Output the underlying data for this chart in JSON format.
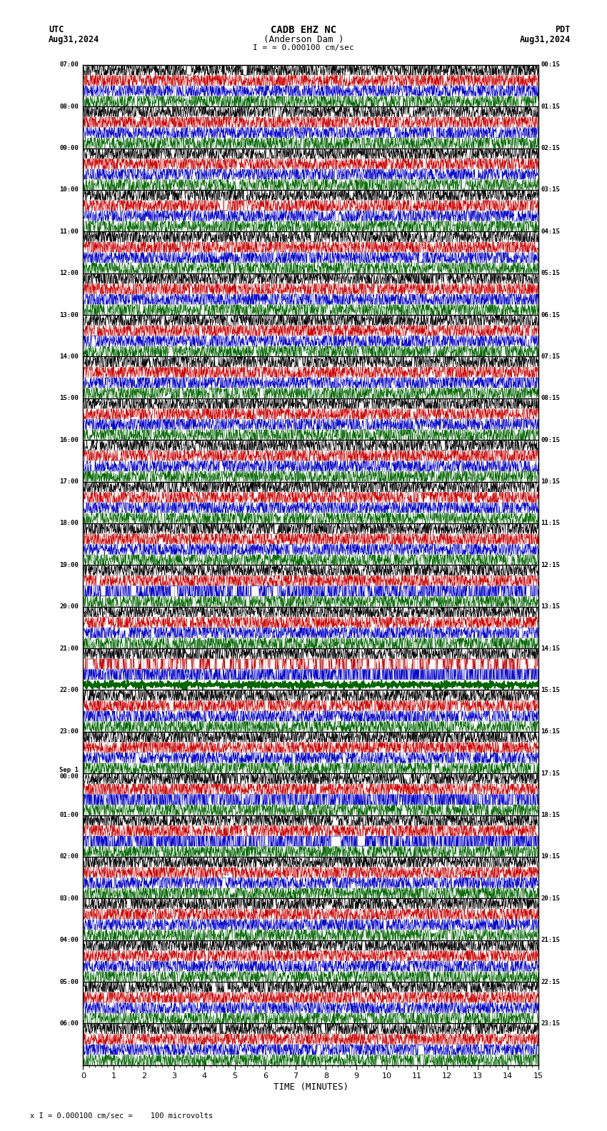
{
  "title_line1": "CADB EHZ NC",
  "title_line2": "(Anderson Dam )",
  "scale_label": "= 0.000100 cm/sec",
  "utc_label": "UTC",
  "utc_date": "Aug31,2024",
  "pdt_label": "PDT",
  "pdt_date": "Aug31,2024",
  "footer_label": "= 0.000100 cm/sec =    100 microvolts",
  "xlabel": "TIME (MINUTES)",
  "left_times": [
    "07:00",
    "08:00",
    "09:00",
    "10:00",
    "11:00",
    "12:00",
    "13:00",
    "14:00",
    "15:00",
    "16:00",
    "17:00",
    "18:00",
    "19:00",
    "20:00",
    "21:00",
    "22:00",
    "23:00",
    "Sep 1\n00:00",
    "01:00",
    "02:00",
    "03:00",
    "04:00",
    "05:00",
    "06:00"
  ],
  "right_times": [
    "00:15",
    "01:15",
    "02:15",
    "03:15",
    "04:15",
    "05:15",
    "06:15",
    "07:15",
    "08:15",
    "09:15",
    "10:15",
    "11:15",
    "12:15",
    "13:15",
    "14:15",
    "15:15",
    "16:15",
    "17:15",
    "18:15",
    "19:15",
    "20:15",
    "21:15",
    "22:15",
    "23:15"
  ],
  "num_rows": 24,
  "num_subrows": 4,
  "x_min": 0,
  "x_max": 15,
  "x_ticks": [
    0,
    1,
    2,
    3,
    4,
    5,
    6,
    7,
    8,
    9,
    10,
    11,
    12,
    13,
    14,
    15
  ],
  "bg_color": "#ffffff",
  "channel_colors": [
    "#000000",
    "#cc0000",
    "#0000cc",
    "#006600"
  ],
  "grid_major_color": "#000000",
  "grid_minor_color": "#666666",
  "noise_amp": 0.008,
  "spike_prob": 0.003
}
